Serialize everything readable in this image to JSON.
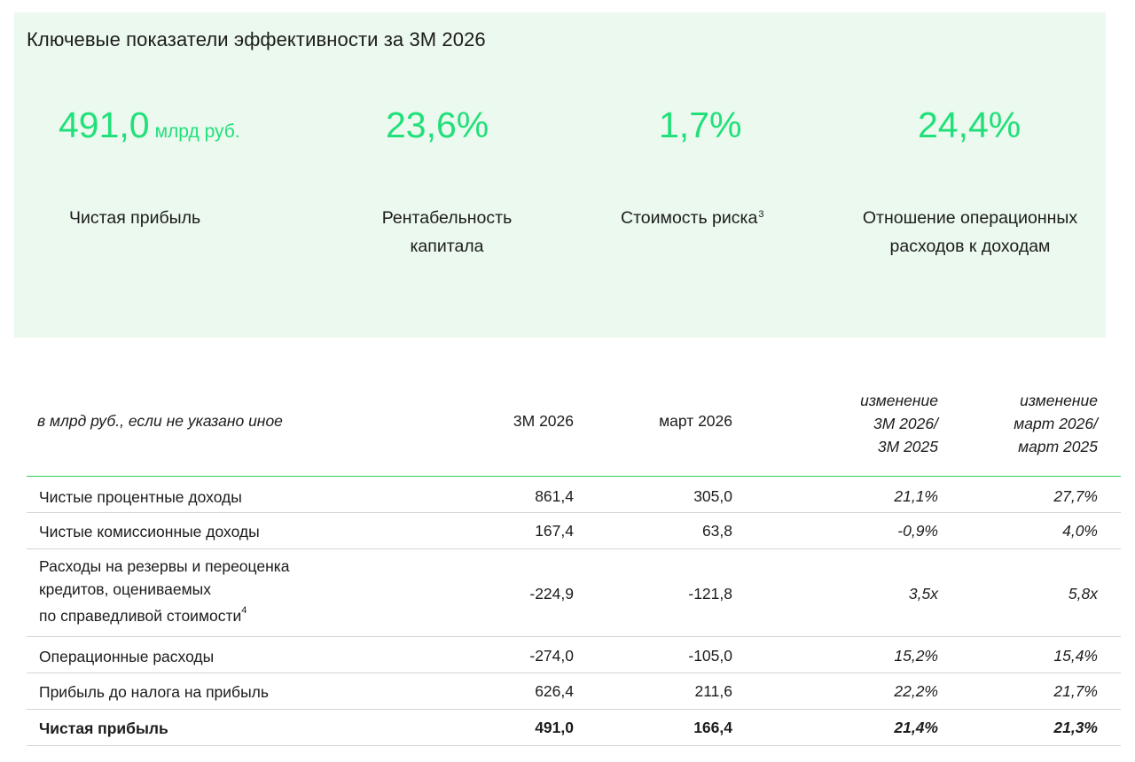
{
  "kpi_panel": {
    "title": "Ключевые показатели эффективности за 3М 2026",
    "items": [
      {
        "value": "491,0",
        "unit": "млрд руб.",
        "label": "Чистая прибыль",
        "sup": ""
      },
      {
        "value": "23,6%",
        "unit": "",
        "label_line1": "Рентабельность",
        "label_line2": "капитала",
        "sup": ""
      },
      {
        "value": "1,7%",
        "unit": "",
        "label": "Стоимость риска",
        "sup": "3"
      },
      {
        "value": "24,4%",
        "unit": "",
        "label_line1": "Отношение операционных",
        "label_line2": "расходов к доходам",
        "sup": ""
      }
    ],
    "accent_color": "#21e07a",
    "background_color": "#ebf9ee"
  },
  "table": {
    "description": "в млрд руб., если не указано иное",
    "columns": {
      "col1": "3М 2026",
      "col2": "март 2026",
      "col3_line1": "изменение",
      "col3_line2": "3М 2026/",
      "col3_line3": "3М 2025",
      "col4_line1": "изменение",
      "col4_line2": "март 2026/",
      "col4_line3": "март 2025"
    },
    "rows": [
      {
        "name": "Чистые процентные доходы",
        "v1": "861,4",
        "v2": "305,0",
        "c1": "21,1%",
        "c2": "27,7%"
      },
      {
        "name": "Чистые комиссионные доходы",
        "v1": "167,4",
        "v2": "63,8",
        "c1": "-0,9%",
        "c2": "4,0%"
      },
      {
        "name_line1": "Расходы на резервы и переоценка",
        "name_line2": "кредитов, оцениваемых",
        "name_line3": "по справедливой стоимости",
        "sup": "4",
        "v1": "-224,9",
        "v2": "-121,8",
        "c1": "3,5x",
        "c2": "5,8x"
      },
      {
        "name": "Операционные расходы",
        "v1": "-274,0",
        "v2": "-105,0",
        "c1": "15,2%",
        "c2": "15,4%"
      },
      {
        "name": "Прибыль до налога на прибыль",
        "v1": "626,4",
        "v2": "211,6",
        "c1": "22,2%",
        "c2": "21,7%"
      },
      {
        "name": "Чистая прибыль",
        "v1": "491,0",
        "v2": "166,4",
        "c1": "21,4%",
        "c2": "21,3%"
      }
    ],
    "header_rule_color": "#2fd15a"
  }
}
